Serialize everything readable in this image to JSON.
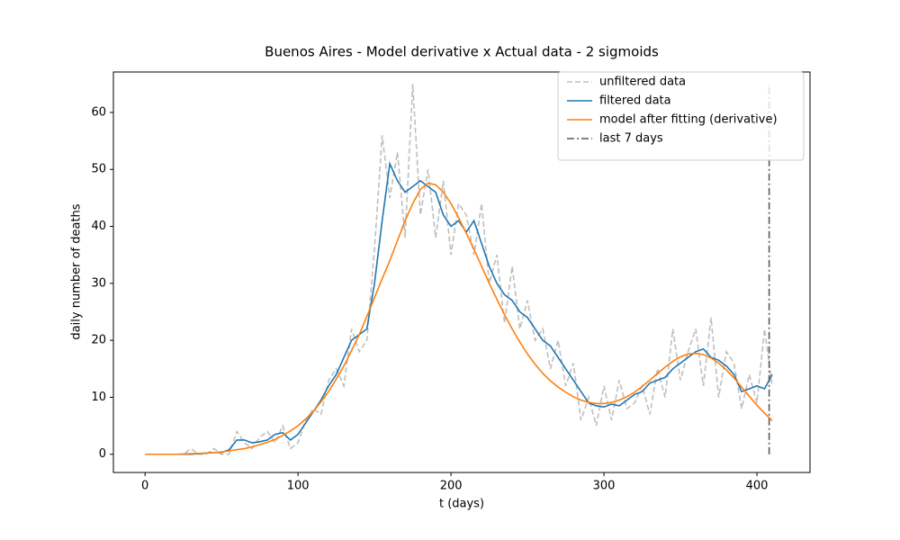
{
  "chart_data": {
    "type": "line",
    "title": "Buenos Aires - Model derivative x Actual data - 2 sigmoids",
    "x_label": "t (days)",
    "y_label": "daily number of deaths",
    "xlim": [
      -20.7,
      434.7
    ],
    "ylim": [
      -3.2,
      67.1
    ],
    "xticks": [
      0,
      100,
      200,
      300,
      400
    ],
    "yticks": [
      0,
      10,
      20,
      30,
      40,
      50,
      60
    ],
    "grid": false,
    "legend": "upper right",
    "x": [
      0,
      5,
      10,
      15,
      20,
      25,
      30,
      35,
      40,
      45,
      50,
      55,
      60,
      65,
      70,
      75,
      80,
      85,
      90,
      95,
      100,
      105,
      110,
      115,
      120,
      125,
      130,
      135,
      140,
      145,
      150,
      155,
      160,
      165,
      170,
      175,
      180,
      185,
      190,
      195,
      200,
      205,
      210,
      215,
      220,
      225,
      230,
      235,
      240,
      245,
      250,
      255,
      260,
      265,
      270,
      275,
      280,
      285,
      290,
      295,
      300,
      305,
      310,
      315,
      320,
      325,
      330,
      335,
      340,
      345,
      350,
      355,
      360,
      365,
      370,
      375,
      380,
      385,
      390,
      395,
      400,
      405,
      410
    ],
    "series": [
      {
        "name": "unfiltered data",
        "color": "#bfbfbf",
        "linestyle": "dashed",
        "values": [
          0,
          0,
          0,
          0,
          0,
          0,
          1,
          0,
          0,
          1,
          0,
          0,
          4,
          2,
          1,
          3,
          4,
          2,
          5,
          1,
          2,
          6,
          8,
          7,
          13,
          15,
          12,
          22,
          18,
          20,
          36,
          56,
          45,
          53,
          38,
          65,
          42,
          50,
          38,
          48,
          35,
          44,
          42,
          35,
          44,
          30,
          35,
          23,
          33,
          22,
          27,
          20,
          22,
          15,
          20,
          12,
          16,
          6,
          10,
          5,
          12,
          6,
          13,
          8,
          9,
          12,
          7,
          15,
          10,
          22,
          13,
          18,
          22,
          12,
          24,
          10,
          18,
          16,
          8,
          14,
          9,
          22,
          12
        ]
      },
      {
        "name": "filtered data",
        "color": "#1f77b4",
        "linestyle": "solid",
        "values": [
          0,
          0,
          0,
          0,
          0,
          0,
          0,
          0.1,
          0.2,
          0.3,
          0.3,
          0.8,
          2.5,
          2.5,
          2,
          2.2,
          2.5,
          3.5,
          3.8,
          2.5,
          3.5,
          5.5,
          7.5,
          9.5,
          12,
          14,
          17,
          20,
          21,
          22,
          30,
          41,
          51,
          48,
          46,
          47,
          48,
          47,
          46,
          42,
          40,
          41,
          39,
          41,
          37,
          33,
          30,
          28,
          27,
          25,
          24,
          22,
          20,
          19,
          17,
          15,
          13,
          11,
          9,
          8.5,
          8.3,
          8.8,
          8.5,
          9.5,
          10.5,
          11,
          12.5,
          13,
          13.5,
          15,
          16,
          17,
          18,
          18.5,
          17,
          16.5,
          15.5,
          14,
          11,
          11.5,
          12,
          11.5,
          14
        ]
      },
      {
        "name": "model after fitting (derivative)",
        "color": "#ff7f0e",
        "linestyle": "solid",
        "values": [
          0,
          0,
          0,
          0,
          0,
          0.05,
          0.1,
          0.15,
          0.2,
          0.3,
          0.4,
          0.6,
          0.8,
          1.0,
          1.3,
          1.7,
          2.1,
          2.6,
          3.3,
          4.1,
          5.0,
          6.2,
          7.5,
          9.2,
          11,
          13.2,
          15.5,
          18.2,
          21,
          24.2,
          27.5,
          30.8,
          34,
          37.5,
          41,
          44,
          46.5,
          47.6,
          47.3,
          46,
          44,
          41.5,
          38.8,
          36,
          33,
          30,
          27.2,
          24.5,
          22,
          19.7,
          17.6,
          15.8,
          14.2,
          12.9,
          11.8,
          10.9,
          10.1,
          9.5,
          9.1,
          8.9,
          8.9,
          9.1,
          9.5,
          10.1,
          10.9,
          11.9,
          13,
          14.2,
          15.3,
          16.3,
          17.1,
          17.6,
          17.7,
          17.5,
          16.9,
          16,
          14.8,
          13.4,
          11.8,
          10.2,
          8.6,
          7.2,
          5.9
        ]
      },
      {
        "name": "last 7 days",
        "color": "#595959",
        "linestyle": "dashdot",
        "x": [
          408,
          408
        ],
        "values": [
          0,
          65
        ]
      }
    ]
  }
}
